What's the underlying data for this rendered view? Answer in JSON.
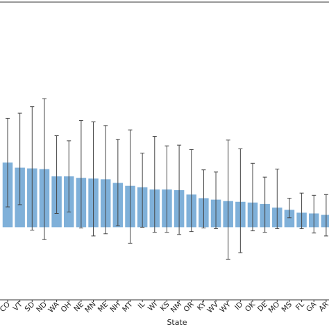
{
  "chart_data": {
    "type": "bar",
    "xlabel": "State",
    "ylabel": "",
    "bar_color": "#7fb0d9",
    "error_color": "#444444",
    "categories": [
      "CO",
      "VT",
      "SD",
      "ND",
      "WA",
      "OH",
      "NE",
      "MN",
      "ME",
      "NH",
      "MT",
      "IL",
      "WI",
      "KS",
      "NM",
      "OR",
      "KY",
      "WV",
      "WY",
      "ID",
      "OK",
      "DE",
      "MO",
      "MS",
      "FL",
      "GA",
      "AR"
    ],
    "values": [
      0.89,
      0.82,
      0.81,
      0.8,
      0.7,
      0.7,
      0.68,
      0.67,
      0.66,
      0.61,
      0.57,
      0.55,
      0.52,
      0.52,
      0.51,
      0.45,
      0.4,
      0.38,
      0.36,
      0.35,
      0.34,
      0.32,
      0.27,
      0.24,
      0.2,
      0.19,
      0.17
    ],
    "error_low": [
      0.28,
      0.31,
      -0.04,
      -0.17,
      0.19,
      0.21,
      -0.01,
      -0.12,
      -0.09,
      0.02,
      -0.22,
      0.0,
      -0.07,
      -0.07,
      -0.1,
      -0.06,
      -0.01,
      -0.02,
      -0.44,
      -0.35,
      -0.05,
      -0.07,
      -0.02,
      0.13,
      -0.02,
      -0.08,
      -0.12
    ],
    "error_high": [
      1.5,
      1.57,
      1.66,
      1.77,
      1.26,
      1.19,
      1.47,
      1.45,
      1.4,
      1.21,
      1.34,
      1.02,
      1.25,
      1.12,
      1.13,
      1.07,
      0.79,
      0.76,
      1.2,
      1.08,
      0.88,
      0.69,
      0.8,
      0.4,
      0.47,
      0.44,
      0.45
    ],
    "ylim": [
      -1.0,
      3.1
    ],
    "y_ticks_visible": false,
    "grid": false,
    "legend": "none"
  }
}
